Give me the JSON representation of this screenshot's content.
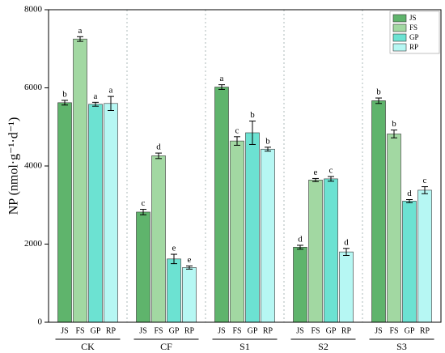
{
  "chart_data": {
    "type": "bar",
    "ylabel": "NP (nmol·g⁻¹·d⁻¹)",
    "categories": [
      "CK",
      "CF",
      "S1",
      "S2",
      "S3"
    ],
    "ylim": [
      0,
      8000
    ],
    "yticks": [
      0,
      2000,
      4000,
      6000,
      8000
    ],
    "legend": "upper right",
    "series": [
      {
        "name": "JS",
        "color": "#5fb46c",
        "values": [
          5620,
          2820,
          6020,
          1920,
          5670
        ],
        "errors": [
          60,
          70,
          60,
          50,
          70
        ],
        "letters": [
          "b",
          "c",
          "a",
          "d",
          "b"
        ]
      },
      {
        "name": "FS",
        "color": "#a2d8a2",
        "values": [
          7250,
          4260,
          4640,
          3640,
          4820
        ],
        "errors": [
          60,
          70,
          110,
          40,
          100
        ],
        "letters": [
          "a",
          "d",
          "c",
          "e",
          "b"
        ]
      },
      {
        "name": "GP",
        "color": "#6ce2d2",
        "values": [
          5580,
          1620,
          4850,
          3670,
          3100
        ],
        "errors": [
          50,
          120,
          300,
          60,
          40
        ],
        "letters": [
          "a",
          "e",
          "b",
          "c",
          "d"
        ]
      },
      {
        "name": "RP",
        "color": "#b6f7f3",
        "values": [
          5600,
          1400,
          4430,
          1800,
          3380
        ],
        "errors": [
          180,
          40,
          50,
          90,
          90
        ],
        "letters": [
          "a",
          "e",
          "b",
          "d",
          "c"
        ]
      }
    ]
  }
}
